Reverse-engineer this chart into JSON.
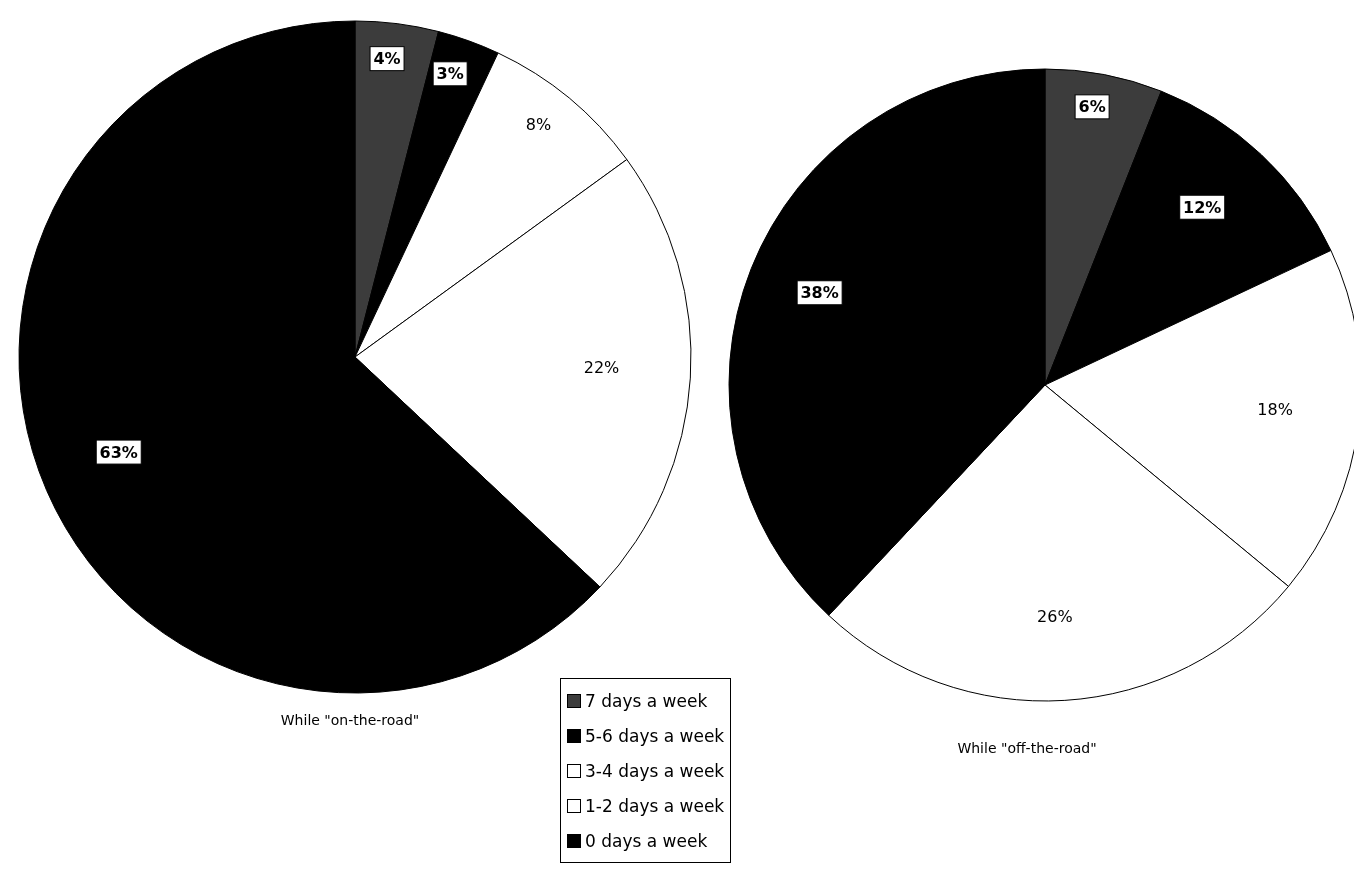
{
  "chart_data": [
    {
      "type": "pie",
      "title": "While \"on-the-road\"",
      "categories": [
        "7 days a week",
        "5-6 days a week",
        "3-4 days a week",
        "1-2 days a week",
        "0 days a week"
      ],
      "values": [
        4,
        3,
        8,
        22,
        63
      ],
      "colors": [
        "#3c3c3c",
        "#000000",
        "#ffffff",
        "#ffffff",
        "#000000"
      ],
      "value_labels": [
        "4%",
        "3%",
        "8%",
        "22%",
        "63%"
      ],
      "legend": "bottom right"
    },
    {
      "type": "pie",
      "title": "While \"off-the-road\"",
      "categories": [
        null,
        null,
        null,
        null,
        null
      ],
      "values": [
        6,
        12,
        18,
        26,
        38
      ],
      "colors": [
        "#3c3c3c",
        "#000000",
        "#ffffff",
        "#ffffff",
        "#000000"
      ],
      "value_labels": [
        "6%",
        "12%",
        "18%",
        "26%",
        "38%"
      ]
    }
  ]
}
